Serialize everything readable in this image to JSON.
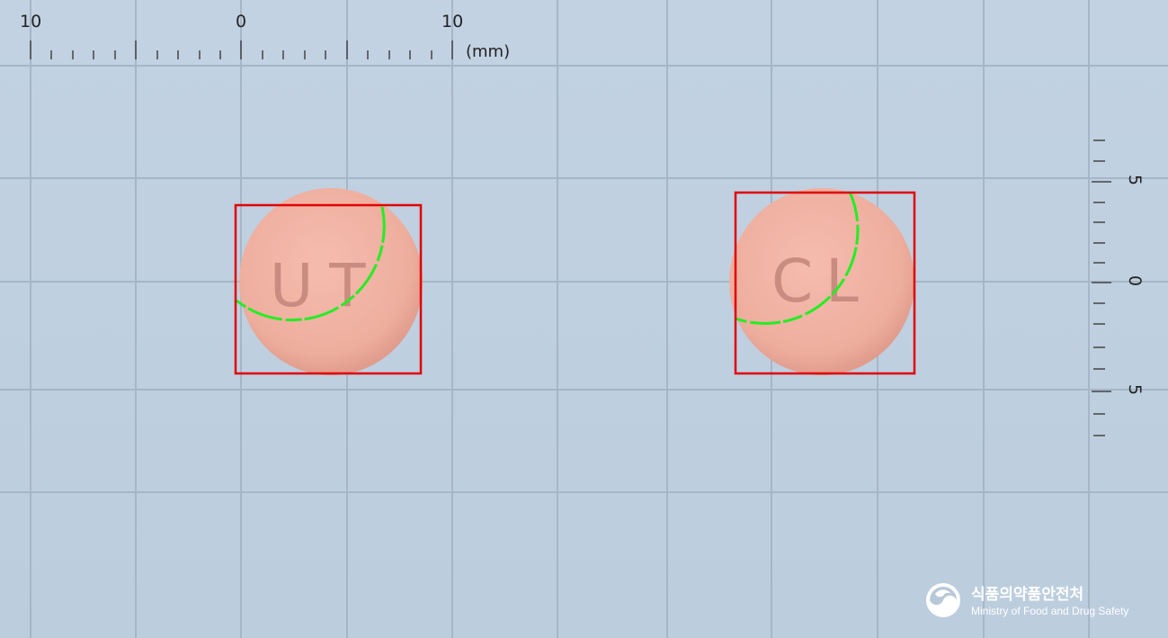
{
  "ruler_top": {
    "labels": [
      "10",
      "0",
      "10"
    ],
    "unit": "(mm)"
  },
  "ruler_right": {
    "labels": [
      "5",
      "0",
      "5"
    ]
  },
  "pills": [
    {
      "imprint": "UT",
      "color": "#f1b3a3"
    },
    {
      "imprint": "CL",
      "color": "#f1b3a3"
    }
  ],
  "colors": {
    "background": "#c0d0e0",
    "grid": "#a4b4c6",
    "bounding_box": "#e00000",
    "contour": "#22ee22"
  },
  "logo": {
    "icon": "government-emblem-icon",
    "korean": "식품의약품안전처",
    "english": "Ministry of Food and Drug Safety"
  }
}
